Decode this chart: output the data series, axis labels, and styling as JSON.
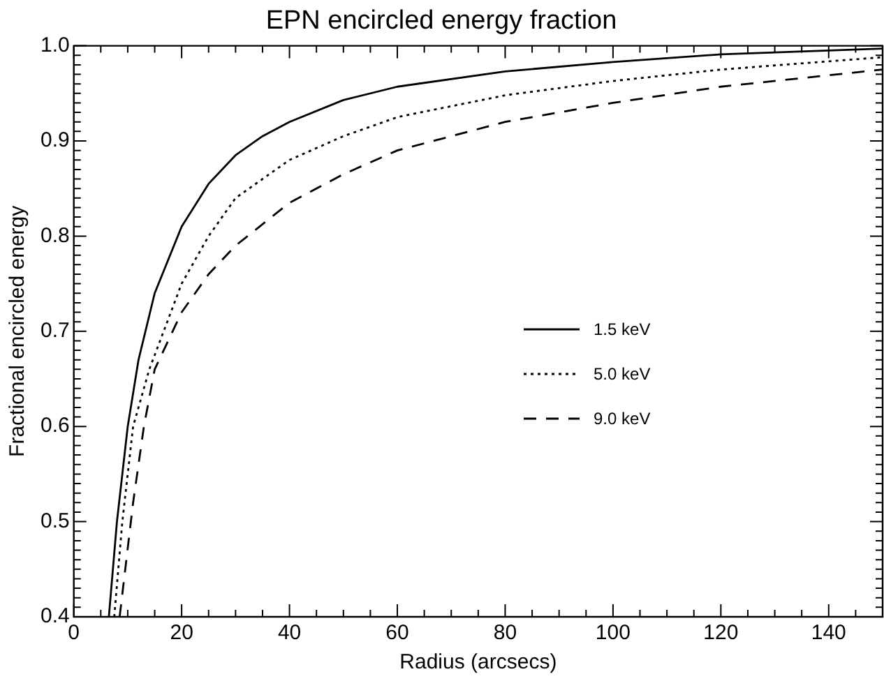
{
  "chart_data": {
    "type": "line",
    "title": "EPN encircled energy fraction",
    "xlabel": "Radius (arcsecs)",
    "ylabel": "Fractional encircled energy",
    "xlim": [
      0,
      150
    ],
    "xticks": [
      0,
      20,
      40,
      60,
      80,
      100,
      120,
      140
    ],
    "ylim": [
      0.4,
      1.0
    ],
    "yticks": [
      0.4,
      0.5,
      0.6,
      0.7,
      0.8,
      0.9,
      {
        "value": 1.0,
        "label": "1.0"
      }
    ],
    "grid": false,
    "legend": "right",
    "marker": "none",
    "series": [
      {
        "name": "1.5 keV",
        "color": "#000000",
        "line_style": "solid",
        "x": [
          6.5,
          8,
          10,
          12,
          15,
          20,
          25,
          30,
          35,
          40,
          50,
          60,
          80,
          100,
          120,
          150
        ],
        "values": [
          0.4,
          0.5,
          0.6,
          0.67,
          0.74,
          0.81,
          0.855,
          0.885,
          0.905,
          0.92,
          0.943,
          0.957,
          0.973,
          0.983,
          0.991,
          0.997
        ]
      },
      {
        "name": "5.0 keV",
        "color": "#000000",
        "line_style": "dotted",
        "x": [
          7.5,
          9,
          11,
          14,
          20,
          25,
          30,
          40,
          50,
          60,
          80,
          100,
          120,
          150
        ],
        "values": [
          0.4,
          0.5,
          0.6,
          0.66,
          0.75,
          0.8,
          0.84,
          0.88,
          0.905,
          0.925,
          0.948,
          0.963,
          0.975,
          0.988
        ]
      },
      {
        "name": "9.0 keV",
        "color": "#000000",
        "line_style": "dashed",
        "x": [
          8.5,
          11,
          13,
          15,
          20,
          25,
          30,
          40,
          50,
          60,
          80,
          100,
          120,
          150
        ],
        "values": [
          0.4,
          0.52,
          0.6,
          0.66,
          0.72,
          0.76,
          0.79,
          0.835,
          0.865,
          0.89,
          0.92,
          0.94,
          0.957,
          0.975
        ]
      }
    ]
  }
}
